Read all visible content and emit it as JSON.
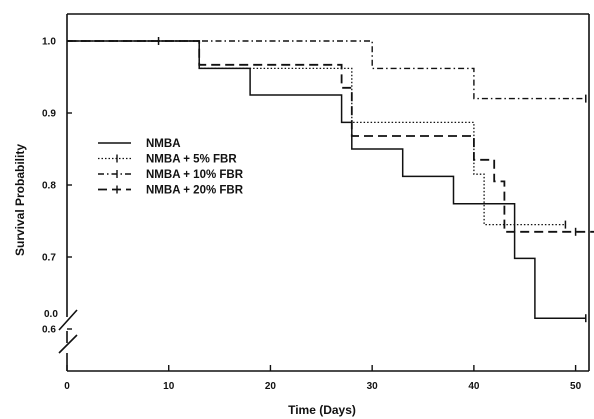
{
  "chart_data": {
    "type": "line",
    "subtype": "step (Kaplan-Meier survival curves)",
    "title": "",
    "xlabel": "Time (Days)",
    "ylabel": "Survival Probability",
    "xlim": [
      0,
      53
    ],
    "ylim": [
      0.58,
      1.025
    ],
    "y_axis_break": "between 0 and 0.6",
    "x_ticks": [
      "0",
      "10",
      "20",
      "30",
      "40",
      "50"
    ],
    "x_tick_values": [
      0,
      10,
      20,
      30,
      40,
      50
    ],
    "y_ticks": [
      "0.0",
      "0.6",
      "0.7",
      "0.8",
      "0.9",
      "1.0"
    ],
    "y_tick_values": [
      0.6,
      0.7,
      0.8,
      0.9,
      1.0
    ],
    "grid": false,
    "legend_position": "center-left",
    "series": [
      {
        "name": "NMBA",
        "line_style": "solid",
        "points": [
          [
            0,
            1.0
          ],
          [
            13,
            1.0
          ],
          [
            13,
            0.962
          ],
          [
            18,
            0.962
          ],
          [
            18,
            0.925
          ],
          [
            27,
            0.925
          ],
          [
            27,
            0.887
          ],
          [
            28,
            0.887
          ],
          [
            28,
            0.85
          ],
          [
            33,
            0.85
          ],
          [
            33,
            0.812
          ],
          [
            38,
            0.812
          ],
          [
            38,
            0.774
          ],
          [
            44,
            0.774
          ],
          [
            44,
            0.698
          ],
          [
            46,
            0.698
          ],
          [
            46,
            0.615
          ],
          [
            51,
            0.615
          ]
        ],
        "censored": [
          [
            9,
            1.0
          ],
          [
            51,
            0.615
          ]
        ]
      },
      {
        "name": "NMBA + 5% FBR",
        "line_style": "dotted",
        "points": [
          [
            0,
            1.0
          ],
          [
            13,
            1.0
          ],
          [
            13,
            0.962
          ],
          [
            28,
            0.962
          ],
          [
            28,
            0.887
          ],
          [
            40,
            0.887
          ],
          [
            40,
            0.815
          ],
          [
            41,
            0.815
          ],
          [
            41,
            0.745
          ],
          [
            49,
            0.745
          ]
        ],
        "censored": [
          [
            49,
            0.745
          ]
        ]
      },
      {
        "name": "NMBA + 10% FBR",
        "line_style": "dash-dot",
        "points": [
          [
            0,
            1.0
          ],
          [
            30,
            1.0
          ],
          [
            30,
            0.962
          ],
          [
            40,
            0.962
          ],
          [
            40,
            0.92
          ],
          [
            51,
            0.92
          ]
        ],
        "censored": [
          [
            51,
            0.92
          ]
        ]
      },
      {
        "name": "NMBA + 20% FBR",
        "line_style": "dashed",
        "points": [
          [
            0,
            1.0
          ],
          [
            13,
            1.0
          ],
          [
            13,
            0.967
          ],
          [
            27,
            0.967
          ],
          [
            27,
            0.935
          ],
          [
            28,
            0.935
          ],
          [
            28,
            0.868
          ],
          [
            40,
            0.868
          ],
          [
            40,
            0.835
          ],
          [
            42,
            0.835
          ],
          [
            42,
            0.805
          ],
          [
            43,
            0.805
          ],
          [
            43,
            0.735
          ],
          [
            52,
            0.735
          ]
        ],
        "censored": [
          [
            50,
            0.735
          ],
          [
            52,
            0.735
          ]
        ]
      }
    ]
  }
}
